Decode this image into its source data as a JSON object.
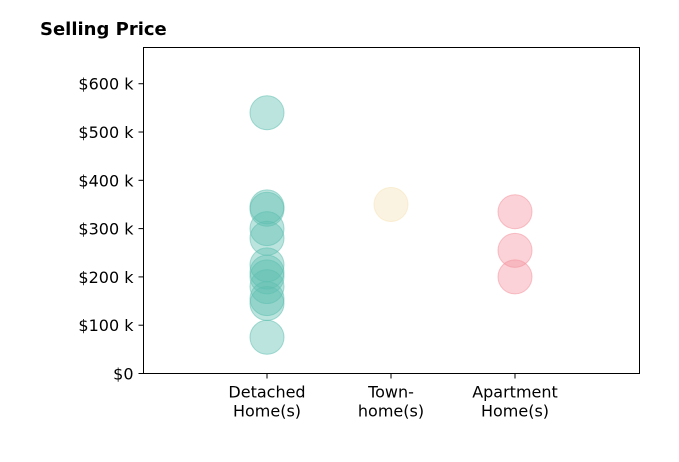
{
  "chart_data": {
    "type": "scatter",
    "title": "Selling Price",
    "xlabel": "",
    "ylabel": "",
    "ylim": [
      0,
      675000
    ],
    "y_ticks": [
      0,
      100000,
      200000,
      300000,
      400000,
      500000,
      600000
    ],
    "y_tick_labels": [
      "$0",
      "$100 k",
      "$200 k",
      "$300 k",
      "$400 k",
      "$500 k",
      "$600 k"
    ],
    "categories": [
      {
        "label_lines": [
          "Detached",
          "Home(s)"
        ]
      },
      {
        "label_lines": [
          "Town-",
          "home(s)"
        ]
      },
      {
        "label_lines": [
          "Apartment",
          "Home(s)"
        ]
      }
    ],
    "grid": false,
    "legend": "none",
    "series": [
      {
        "category_index": 0,
        "color": "#5fbfb1",
        "values": [
          75000,
          145000,
          155000,
          180000,
          200000,
          210000,
          225000,
          280000,
          300000,
          340000,
          345000,
          540000
        ]
      },
      {
        "category_index": 1,
        "color": "#f6e3b8",
        "values": [
          350000
        ]
      },
      {
        "category_index": 2,
        "color": "#f4949f",
        "values": [
          200000,
          255000,
          335000
        ]
      }
    ]
  }
}
